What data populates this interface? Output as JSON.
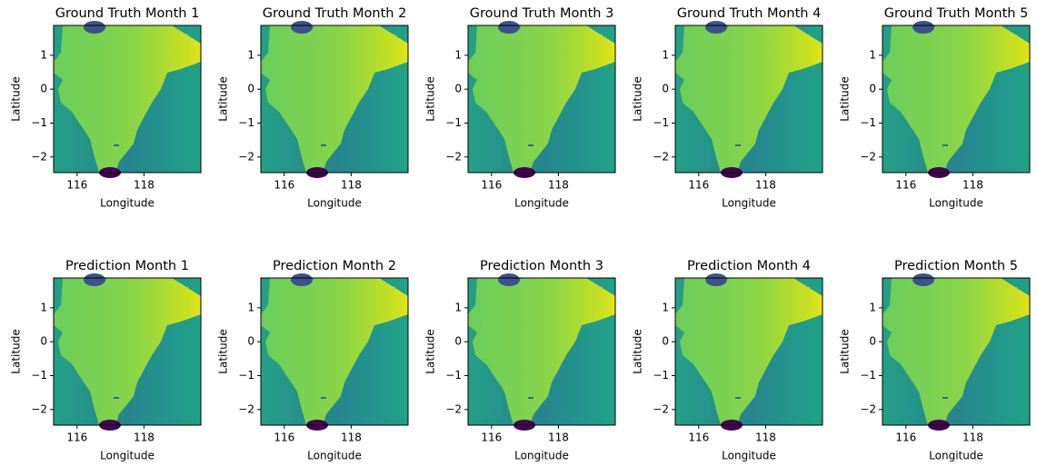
{
  "chart_data": [
    {
      "type": "heatmap",
      "title": "Ground Truth Month 1",
      "xlabel": "Longitude",
      "ylabel": "Latitude",
      "xlim": [
        115.3,
        119.7
      ],
      "ylim": [
        -2.46,
        1.88
      ],
      "xticks": [
        116,
        118
      ],
      "yticks": [
        {
          "value": -2,
          "label": "−2"
        },
        {
          "value": -1,
          "label": "−1"
        },
        0,
        1
      ]
    },
    {
      "type": "heatmap",
      "title": "Ground Truth Month 2",
      "xlabel": "Longitude",
      "ylabel": "Latitude",
      "xlim": [
        115.3,
        119.7
      ],
      "ylim": [
        -2.46,
        1.88
      ],
      "xticks": [
        116,
        118
      ],
      "yticks": [
        {
          "value": -2,
          "label": "−2"
        },
        {
          "value": -1,
          "label": "−1"
        },
        0,
        1
      ]
    },
    {
      "type": "heatmap",
      "title": "Ground Truth Month 3",
      "xlabel": "Longitude",
      "ylabel": "Latitude",
      "xlim": [
        115.3,
        119.7
      ],
      "ylim": [
        -2.46,
        1.88
      ],
      "xticks": [
        116,
        118
      ],
      "yticks": [
        {
          "value": -2,
          "label": "−2"
        },
        {
          "value": -1,
          "label": "−1"
        },
        0,
        1
      ]
    },
    {
      "type": "heatmap",
      "title": "Ground Truth Month 4",
      "xlabel": "Longitude",
      "ylabel": "Latitude",
      "xlim": [
        115.3,
        119.7
      ],
      "ylim": [
        -2.46,
        1.88
      ],
      "xticks": [
        116,
        118
      ],
      "yticks": [
        {
          "value": -2,
          "label": "−2"
        },
        {
          "value": -1,
          "label": "−1"
        },
        0,
        1
      ]
    },
    {
      "type": "heatmap",
      "title": "Ground Truth Month 5",
      "xlabel": "Longitude",
      "ylabel": "Latitude",
      "xlim": [
        115.3,
        119.7
      ],
      "ylim": [
        -2.46,
        1.88
      ],
      "xticks": [
        116,
        118
      ],
      "yticks": [
        {
          "value": -2,
          "label": "−2"
        },
        {
          "value": -1,
          "label": "−1"
        },
        0,
        1
      ]
    },
    {
      "type": "heatmap",
      "title": "Prediction Month 1",
      "xlabel": "Longitude",
      "ylabel": "Latitude",
      "xlim": [
        115.3,
        119.7
      ],
      "ylim": [
        -2.46,
        1.88
      ],
      "xticks": [
        116,
        118
      ],
      "yticks": [
        {
          "value": -2,
          "label": "−2"
        },
        {
          "value": -1,
          "label": "−1"
        },
        0,
        1
      ]
    },
    {
      "type": "heatmap",
      "title": "Prediction Month 2",
      "xlabel": "Longitude",
      "ylabel": "Latitude",
      "xlim": [
        115.3,
        119.7
      ],
      "ylim": [
        -2.46,
        1.88
      ],
      "xticks": [
        116,
        118
      ],
      "yticks": [
        {
          "value": -2,
          "label": "−2"
        },
        {
          "value": -1,
          "label": "−1"
        },
        0,
        1
      ]
    },
    {
      "type": "heatmap",
      "title": "Prediction Month 3",
      "xlabel": "Longitude",
      "ylabel": "Latitude",
      "xlim": [
        115.3,
        119.7
      ],
      "ylim": [
        -2.46,
        1.88
      ],
      "xticks": [
        116,
        118
      ],
      "yticks": [
        {
          "value": -2,
          "label": "−2"
        },
        {
          "value": -1,
          "label": "−1"
        },
        0,
        1
      ]
    },
    {
      "type": "heatmap",
      "title": "Prediction Month 4",
      "xlabel": "Longitude",
      "ylabel": "Latitude",
      "xlim": [
        115.3,
        119.7
      ],
      "ylim": [
        -2.46,
        1.88
      ],
      "xticks": [
        116,
        118
      ],
      "yticks": [
        {
          "value": -2,
          "label": "−2"
        },
        {
          "value": -1,
          "label": "−1"
        },
        0,
        1
      ]
    },
    {
      "type": "heatmap",
      "title": "Prediction Month 5",
      "xlabel": "Longitude",
      "ylabel": "Latitude",
      "xlim": [
        115.3,
        119.7
      ],
      "ylim": [
        -2.46,
        1.88
      ],
      "xticks": [
        116,
        118
      ],
      "yticks": [
        {
          "value": -2,
          "label": "−2"
        },
        {
          "value": -1,
          "label": "−1"
        },
        0,
        1
      ]
    }
  ]
}
